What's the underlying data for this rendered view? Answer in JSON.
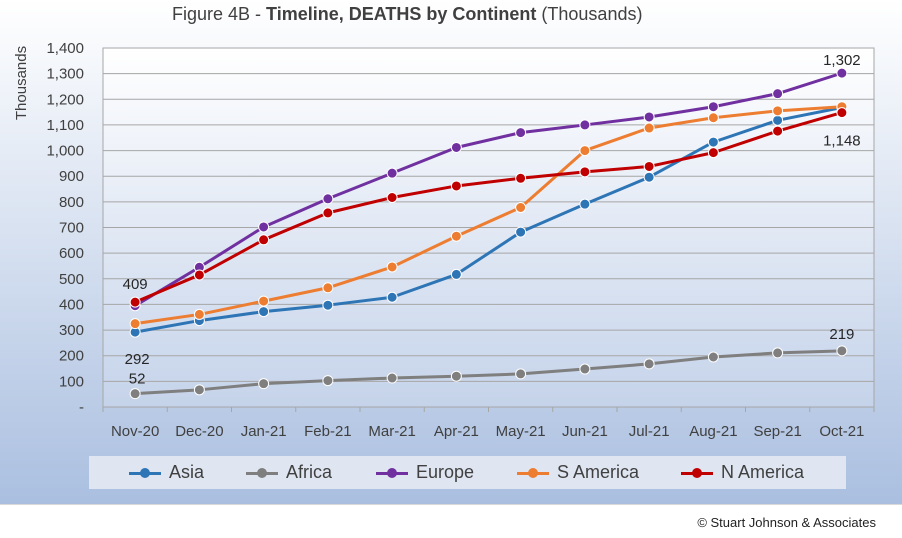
{
  "title": {
    "prefix": "Figure 4B - ",
    "bold": "Timeline, DEATHS by Continent",
    "suffix": " (Thousands)"
  },
  "footer": "© Stuart Johnson & Associates",
  "colors": {
    "Asia": "#2e75b6",
    "Africa": "#7f7f7f",
    "Europe": "#7030a0",
    "S America": "#ed7d31",
    "N America": "#c00000"
  },
  "chart_data": {
    "type": "line",
    "title": "Figure 4B - Timeline, DEATHS by Continent (Thousands)",
    "xlabel": "",
    "ylabel": "Thousands",
    "ylim": [
      0,
      1400
    ],
    "yticks": [
      0,
      100,
      200,
      300,
      400,
      500,
      600,
      700,
      800,
      900,
      1000,
      1100,
      1200,
      1300,
      1400
    ],
    "ytick_labels": [
      "-",
      "100",
      "200",
      "300",
      "400",
      "500",
      "600",
      "700",
      "800",
      "900",
      "1,000",
      "1,100",
      "1,200",
      "1,300",
      "1,400"
    ],
    "grid": true,
    "legend_position": "bottom",
    "categories": [
      "Nov-20",
      "Dec-20",
      "Jan-21",
      "Feb-21",
      "Mar-21",
      "Apr-21",
      "May-21",
      "Jun-21",
      "Jul-21",
      "Aug-21",
      "Sep-21",
      "Oct-21"
    ],
    "series": [
      {
        "name": "Asia",
        "values": [
          292,
          337,
          372,
          397,
          428,
          517,
          682,
          791,
          896,
          1033,
          1118,
          1168
        ]
      },
      {
        "name": "Africa",
        "values": [
          52,
          67,
          91,
          103,
          113,
          120,
          129,
          148,
          168,
          195,
          211,
          219
        ]
      },
      {
        "name": "Europe",
        "values": [
          395,
          545,
          702,
          812,
          912,
          1012,
          1070,
          1100,
          1131,
          1171,
          1222,
          1302
        ]
      },
      {
        "name": "S America",
        "values": [
          325,
          361,
          413,
          465,
          546,
          666,
          778,
          1000,
          1088,
          1128,
          1155,
          1171
        ]
      },
      {
        "name": "N America",
        "values": [
          409,
          515,
          652,
          757,
          817,
          862,
          892,
          917,
          938,
          992,
          1076,
          1148
        ]
      }
    ],
    "annotations": [
      {
        "series": "N America",
        "index": 0,
        "text": "409"
      },
      {
        "series": "Asia",
        "index": 0,
        "text": "292"
      },
      {
        "series": "Africa",
        "index": 0,
        "text": "52"
      },
      {
        "series": "Europe",
        "index": 11,
        "text": "1,302"
      },
      {
        "series": "N America",
        "index": 11,
        "text": "1,148"
      },
      {
        "series": "Africa",
        "index": 11,
        "text": "219"
      }
    ]
  }
}
